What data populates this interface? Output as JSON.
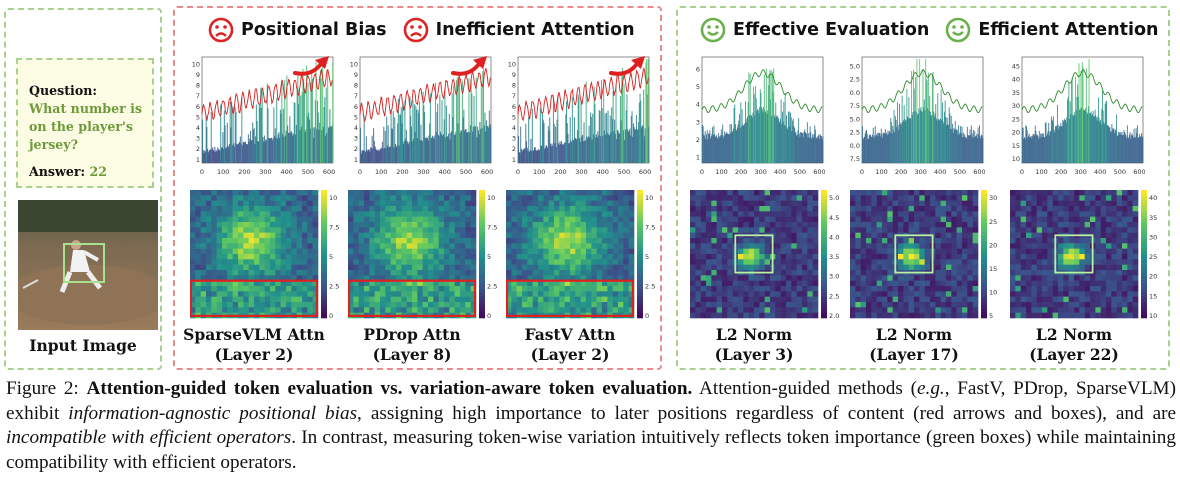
{
  "input_panel": {
    "question_label": "Question:",
    "question_text": "What number is on the player's jersey?",
    "answer_label": "Answer:",
    "answer_value": "22",
    "image_label": "Input Image"
  },
  "attention_header": [
    {
      "icon": "sad-face-icon",
      "text": "Positional Bias"
    },
    {
      "icon": "sad-face-icon",
      "text": "Inefficient Attention"
    }
  ],
  "norm_header": [
    {
      "icon": "smiley-face-icon",
      "text": "Effective Evaluation"
    },
    {
      "icon": "smiley-face-icon",
      "text": "Efficient Attention"
    }
  ],
  "colors": {
    "red_accent": "#dd2222",
    "green_accent": "#6ab04c",
    "red_dash": "#e78b8b",
    "green_dash": "#a9d08e"
  },
  "chart_data": [
    {
      "type": "bar",
      "panel": "attention",
      "label_line1": "SparseVLM Attn",
      "label_line2": "(Layer 2)",
      "x_ticks": [
        "0",
        "100",
        "200",
        "300",
        "400",
        "500",
        "600"
      ],
      "y_ticks": [
        "1",
        "2",
        "3",
        "4",
        "5",
        "6",
        "7",
        "8",
        "9",
        "10"
      ],
      "ylim": [
        1,
        10.3
      ],
      "heatmap_colorbar": [
        "0",
        "2.5",
        "5",
        "7.5",
        "10"
      ],
      "highlight": "red box over lower rows",
      "trend": "increasing"
    },
    {
      "type": "bar",
      "panel": "attention",
      "label_line1": "PDrop Attn",
      "label_line2": "(Layer 8)",
      "x_ticks": [
        "0",
        "100",
        "200",
        "300",
        "400",
        "500",
        "600"
      ],
      "y_ticks": [
        "1",
        "2",
        "3",
        "4",
        "5",
        "6",
        "7",
        "8",
        "9",
        "10"
      ],
      "ylim": [
        1,
        10.3
      ],
      "heatmap_colorbar": [
        "0",
        "2.5",
        "5",
        "7.5",
        "10"
      ],
      "highlight": "red box over lower rows",
      "trend": "increasing"
    },
    {
      "type": "bar",
      "panel": "attention",
      "label_line1": "FastV Attn",
      "label_line2": "(Layer 2)",
      "x_ticks": [
        "0",
        "100",
        "200",
        "300",
        "400",
        "500",
        "600"
      ],
      "y_ticks": [
        "1",
        "2",
        "3",
        "4",
        "5",
        "6",
        "7",
        "8",
        "9",
        "10"
      ],
      "ylim": [
        1,
        10.3
      ],
      "heatmap_colorbar": [
        "0",
        "2.5",
        "5",
        "7.5",
        "10"
      ],
      "highlight": "red box over lower rows",
      "trend": "increasing"
    },
    {
      "type": "bar",
      "panel": "norm",
      "label_line1": "L2 Norm",
      "label_line2": "(Layer 3)",
      "x_ticks": [
        "0",
        "100",
        "200",
        "300",
        "400",
        "500",
        "600"
      ],
      "y_ticks": [
        "1",
        "2",
        "3",
        "4",
        "5",
        "6"
      ],
      "ylim": [
        1,
        6.2
      ],
      "heatmap_colorbar": [
        "2.0",
        "2.5",
        "3.0",
        "3.5",
        "4.0",
        "4.5",
        "5.0"
      ],
      "highlight": "green box at center",
      "trend": "centered"
    },
    {
      "type": "bar",
      "panel": "norm",
      "label_line1": "L2 Norm",
      "label_line2": "(Layer 17)",
      "x_ticks": [
        "0",
        "100",
        "200",
        "300",
        "400",
        "500",
        "600"
      ],
      "y_ticks": [
        "7.5",
        "10.0",
        "12.5",
        "15.0",
        "17.5",
        "20.0",
        "22.5",
        "25.0"
      ],
      "ylim": [
        6,
        26
      ],
      "heatmap_colorbar": [
        "5",
        "10",
        "15",
        "20",
        "25",
        "30"
      ],
      "highlight": "green box at center",
      "trend": "centered"
    },
    {
      "type": "bar",
      "panel": "norm",
      "label_line1": "L2 Norm",
      "label_line2": "(Layer 22)",
      "x_ticks": [
        "0",
        "100",
        "200",
        "300",
        "400",
        "500",
        "600"
      ],
      "y_ticks": [
        "10",
        "15",
        "20",
        "25",
        "30",
        "35",
        "40",
        "45"
      ],
      "ylim": [
        8,
        46
      ],
      "heatmap_colorbar": [
        "10",
        "15",
        "20",
        "25",
        "30",
        "35",
        "40"
      ],
      "highlight": "green box at center",
      "trend": "centered"
    }
  ],
  "caption": {
    "fig_label": "Figure 2:",
    "bold_title": "Attention-guided token evaluation vs. variation-aware token evaluation.",
    "t1": "Attention-guided methods (",
    "eg": "e.g.",
    "t2": ", FastV, PDrop, SparseVLM) exhibit",
    "i1": "information-agnostic positional bias",
    "t3": ", assigning high importance to later positions regardless of content (red arrows and boxes), and are",
    "i2": "incompatible with efficient operators",
    "t4": ". In contrast, measuring token-wise variation intuitively reflects token importance (green boxes) while maintaining compatibility with efficient operators."
  }
}
